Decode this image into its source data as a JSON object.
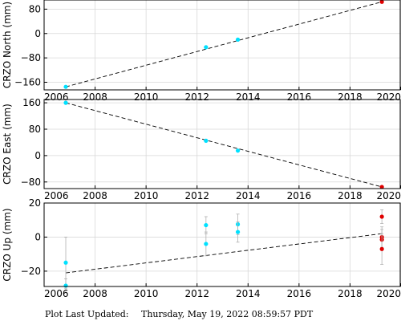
{
  "footer": {
    "label": "Plot Last Updated:",
    "timestamp": "Thursday, May 19, 2022 08:59:57 PDT"
  },
  "colors": {
    "campaign_points": "#00e1ff",
    "recent_points": "#e00000",
    "trend_line": "#000000",
    "error_bars": "#b0b0b0"
  },
  "chart_data": [
    {
      "type": "scatter",
      "ylabel": "CRZO North (mm)",
      "xlabel": "",
      "xlim": [
        2006,
        2020
      ],
      "ylim": [
        -185,
        110
      ],
      "xticks": [
        2006,
        2008,
        2010,
        2012,
        2014,
        2016,
        2018,
        2020
      ],
      "yticks": [
        80,
        0,
        -80,
        -160
      ],
      "ytick_labels": [
        "80",
        "0",
        "−80",
        "−160"
      ],
      "grid": true,
      "series": [
        {
          "color": "#00e1ff",
          "points": [
            [
              2006.85,
              -175
            ],
            [
              2012.35,
              -45
            ],
            [
              2013.6,
              -20
            ]
          ]
        },
        {
          "color": "#e00000",
          "points": [
            [
              2019.25,
              104
            ]
          ]
        }
      ],
      "trend": [
        [
          2006.85,
          -175
        ],
        [
          2019.25,
          104
        ]
      ]
    },
    {
      "type": "scatter",
      "ylabel": "CRZO East (mm)",
      "xlabel": "",
      "xlim": [
        2006,
        2020
      ],
      "ylim": [
        -100,
        170
      ],
      "xticks": [
        2006,
        2008,
        2010,
        2012,
        2014,
        2016,
        2018,
        2020
      ],
      "yticks": [
        160,
        80,
        0,
        -80
      ],
      "ytick_labels": [
        "160",
        "80",
        "0",
        "−80"
      ],
      "grid": true,
      "series": [
        {
          "color": "#00e1ff",
          "points": [
            [
              2006.85,
              160
            ],
            [
              2012.35,
              45
            ],
            [
              2013.6,
              15
            ]
          ]
        },
        {
          "color": "#e00000",
          "points": [
            [
              2019.25,
              -95
            ]
          ]
        }
      ],
      "trend": [
        [
          2006.85,
          160
        ],
        [
          2019.25,
          -95
        ]
      ]
    },
    {
      "type": "scatter",
      "ylabel": "CRZO Up (mm)",
      "xlabel": "",
      "xlim": [
        2006,
        2020
      ],
      "ylim": [
        -29,
        20
      ],
      "xticks": [
        2006,
        2008,
        2010,
        2012,
        2014,
        2016,
        2018,
        2020
      ],
      "ytick_labels": [
        "20",
        "0",
        "−20"
      ],
      "yticks": [
        20,
        0,
        -20
      ],
      "grid": true,
      "series": [
        {
          "color": "#00e1ff",
          "points": [
            [
              2006.85,
              -15,
              15
            ],
            [
              2006.85,
              -28.5,
              4
            ],
            [
              2012.35,
              7,
              5
            ],
            [
              2012.35,
              -4,
              7
            ],
            [
              2013.6,
              7.5,
              6
            ],
            [
              2013.6,
              3,
              6
            ]
          ]
        },
        {
          "color": "#e00000",
          "points": [
            [
              2019.25,
              12,
              4
            ],
            [
              2019.25,
              0,
              6
            ],
            [
              2019.25,
              -1.5,
              6
            ],
            [
              2019.25,
              -7,
              9
            ]
          ]
        }
      ],
      "trend": [
        [
          2006.85,
          -21
        ],
        [
          2019.25,
          2
        ]
      ]
    }
  ]
}
